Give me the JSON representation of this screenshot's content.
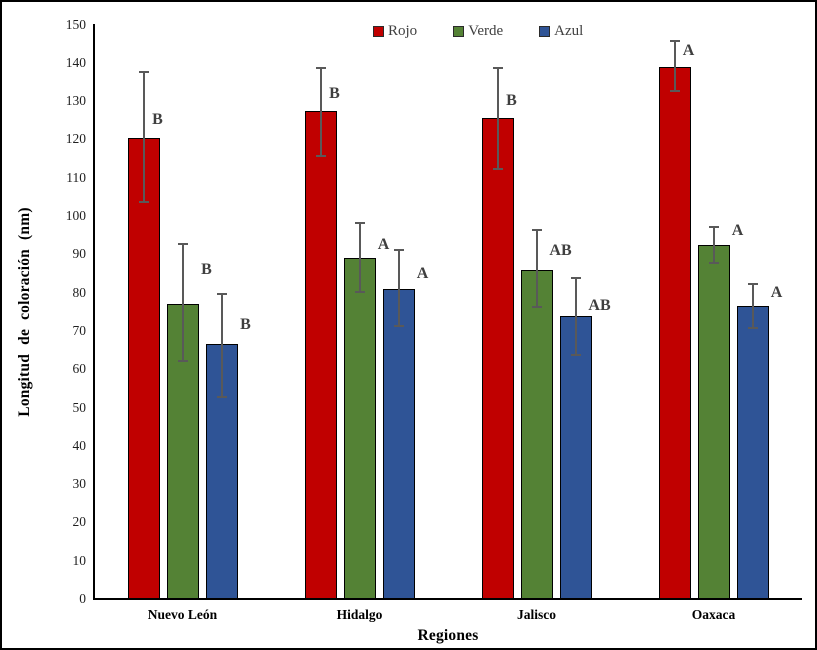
{
  "chart_data": {
    "type": "bar",
    "title": "",
    "xlabel": "Regiones",
    "ylabel": "Longitud de coloración (nm)",
    "ylim": [
      0,
      150
    ],
    "ytick_step": 10,
    "grid": false,
    "legend_position": "top-center",
    "categories": [
      "Nuevo León",
      "Hidalgo",
      "Jalisco",
      "Oaxaca"
    ],
    "series": [
      {
        "name": "Rojo",
        "color": "#C00000",
        "values": [
          120.5,
          127.5,
          125.5,
          139
        ],
        "error_low": [
          103.5,
          115.5,
          112,
          132.5
        ],
        "error_high": [
          138,
          139,
          139,
          146
        ],
        "letters": [
          "B",
          "B",
          "B",
          "A"
        ],
        "letter_y": [
          125,
          132,
          130,
          143
        ]
      },
      {
        "name": "Verde",
        "color": "#548235",
        "values": [
          77,
          89,
          86,
          92.5
        ],
        "error_low": [
          62,
          80,
          76,
          87.5
        ],
        "error_high": [
          93,
          98.5,
          96.5,
          97.5
        ],
        "letters": [
          "B",
          "A",
          "AB",
          "A"
        ],
        "letter_y": [
          86,
          92.5,
          91,
          96
        ]
      },
      {
        "name": "Azul",
        "color": "#2F5496",
        "values": [
          66.5,
          81,
          74,
          76.5
        ],
        "error_low": [
          52.5,
          71,
          63.5,
          70.5
        ],
        "error_high": [
          80,
          91.5,
          84,
          82.5
        ],
        "letters": [
          "B",
          "A",
          "AB",
          "A"
        ],
        "letter_y": [
          71.5,
          85,
          76.5,
          80
        ]
      }
    ],
    "error_bar_color": "#595959",
    "letter_color": "#3f3f3f"
  }
}
